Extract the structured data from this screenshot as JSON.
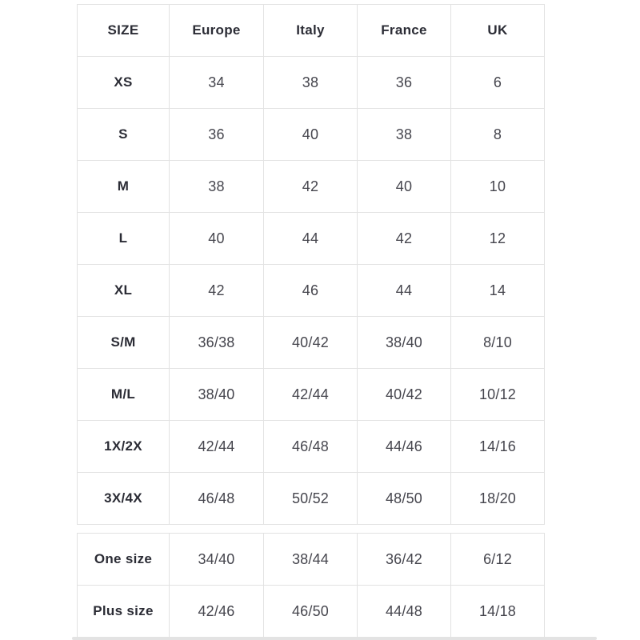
{
  "colors": {
    "background": "#ffffff",
    "border": "#e2e2e2",
    "label_text": "#2b2c35",
    "value_text": "#45454d",
    "scrollbar": "#e3e3e3"
  },
  "main_table": {
    "header": [
      "SIZE",
      "Europe",
      "Italy",
      "France",
      "UK"
    ],
    "rows": [
      [
        "XS",
        "34",
        "38",
        "36",
        "6"
      ],
      [
        "S",
        "36",
        "40",
        "38",
        "8"
      ],
      [
        "M",
        "38",
        "42",
        "40",
        "10"
      ],
      [
        "L",
        "40",
        "44",
        "42",
        "12"
      ],
      [
        "XL",
        "42",
        "46",
        "44",
        "14"
      ],
      [
        "S/M",
        "36/38",
        "40/42",
        "38/40",
        "8/10"
      ],
      [
        "M/L",
        "38/40",
        "42/44",
        "40/42",
        "10/12"
      ],
      [
        "1X/2X",
        "42/44",
        "46/48",
        "44/46",
        "14/16"
      ],
      [
        "3X/4X",
        "46/48",
        "50/52",
        "48/50",
        "18/20"
      ]
    ]
  },
  "secondary_table": {
    "rows": [
      [
        "One size",
        "34/40",
        "38/44",
        "36/42",
        "6/12"
      ],
      [
        "Plus size",
        "42/46",
        "46/50",
        "44/48",
        "14/18"
      ]
    ]
  }
}
